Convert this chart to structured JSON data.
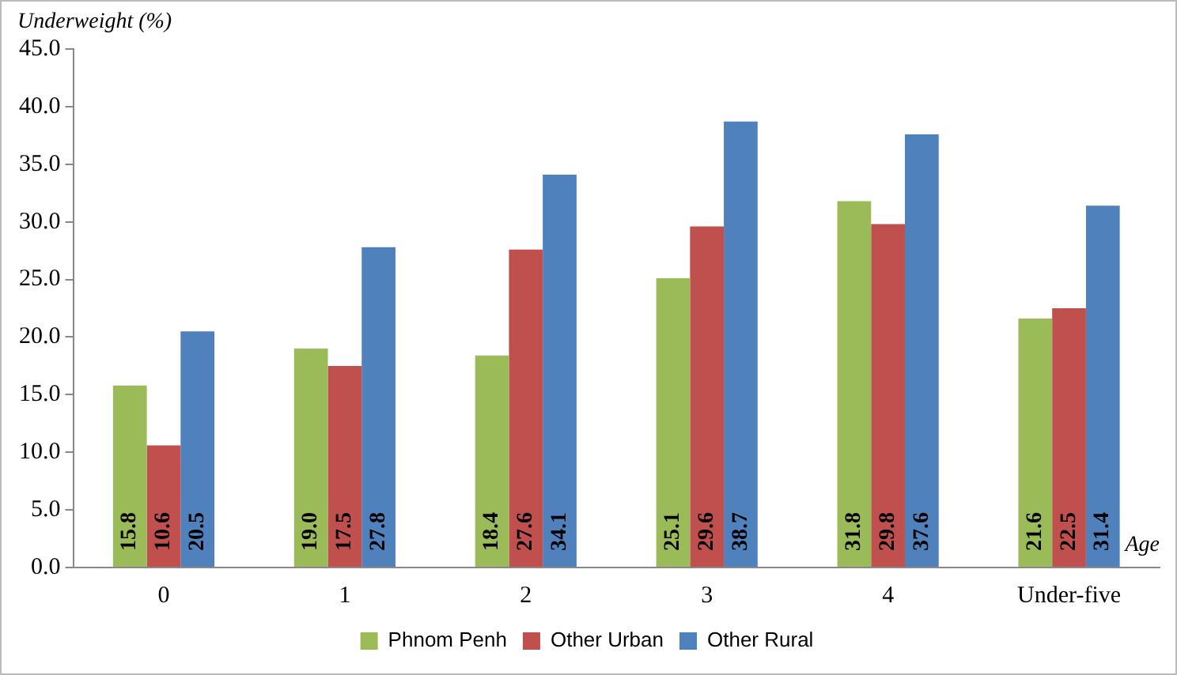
{
  "chart_data": {
    "type": "bar",
    "ylabel": "Underweight (%)",
    "xlabel": "Age",
    "categories": [
      "0",
      "1",
      "2",
      "3",
      "4",
      "Under-five"
    ],
    "series": [
      {
        "name": "Phnom Penh",
        "color": "#9bbb59",
        "values": [
          15.8,
          19.0,
          18.4,
          25.1,
          31.8,
          21.6
        ],
        "value_labels": [
          "15.8",
          "19.0",
          "18.4",
          "25.1",
          "31.8",
          "21.6"
        ]
      },
      {
        "name": "Other Urban",
        "color": "#c0504d",
        "values": [
          10.6,
          17.5,
          27.6,
          29.6,
          29.8,
          22.5
        ],
        "value_labels": [
          "10.6",
          "17.5",
          "27.6",
          "29.6",
          "29.8",
          "22.5"
        ]
      },
      {
        "name": "Other Rural",
        "color": "#4f81bd",
        "values": [
          20.5,
          27.8,
          34.1,
          38.7,
          37.6,
          31.4
        ],
        "value_labels": [
          "20.5",
          "27.8",
          "34.1",
          "38.7",
          "37.6",
          "31.4"
        ]
      }
    ],
    "ylim": [
      0,
      45
    ],
    "yticks": [
      {
        "value": 0,
        "label": "0.0"
      },
      {
        "value": 5,
        "label": "5.0"
      },
      {
        "value": 10,
        "label": "10.0"
      },
      {
        "value": 15,
        "label": "15.0"
      },
      {
        "value": 20,
        "label": "20.0"
      },
      {
        "value": 25,
        "label": "25.0"
      },
      {
        "value": 30,
        "label": "30.0"
      },
      {
        "value": 35,
        "label": "35.0"
      },
      {
        "value": 40,
        "label": "40.0"
      },
      {
        "value": 45,
        "label": "45.0"
      }
    ],
    "grid": false,
    "legend": "bottom"
  }
}
